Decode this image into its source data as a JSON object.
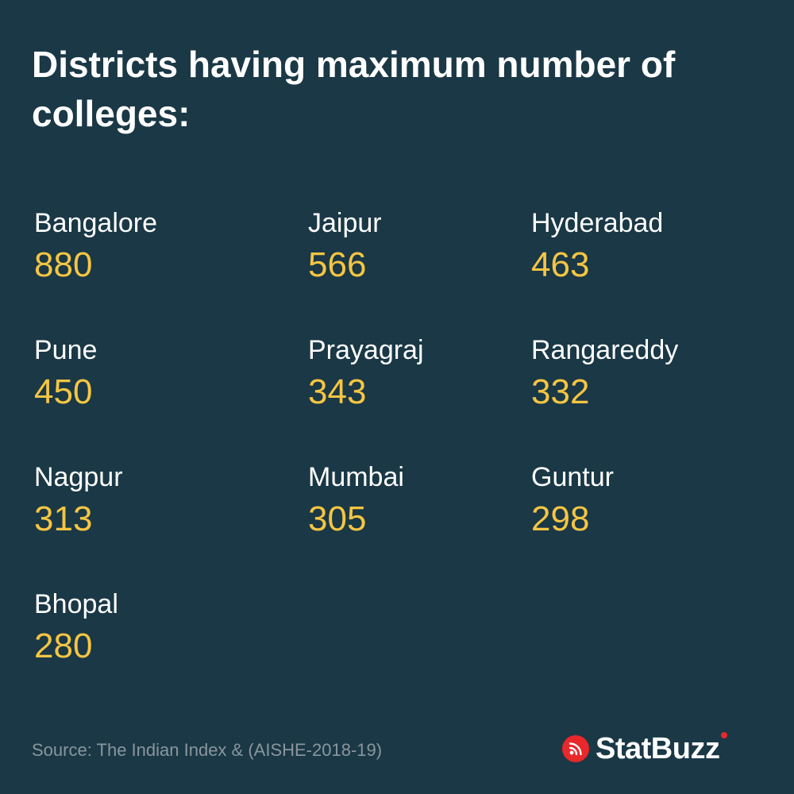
{
  "title": "Districts having maximum number of colleges:",
  "districts": [
    {
      "name": "Bangalore",
      "value": "880"
    },
    {
      "name": "Jaipur",
      "value": "566"
    },
    {
      "name": "Hyderabad",
      "value": "463"
    },
    {
      "name": "Pune",
      "value": "450"
    },
    {
      "name": "Prayagraj",
      "value": "343"
    },
    {
      "name": "Rangareddy",
      "value": "332"
    },
    {
      "name": "Nagpur",
      "value": "313"
    },
    {
      "name": "Mumbai",
      "value": "305"
    },
    {
      "name": "Guntur",
      "value": "298"
    },
    {
      "name": "Bhopal",
      "value": "280"
    }
  ],
  "footer": {
    "source": "Source: The Indian Index & (AISHE-2018-19)",
    "brand": "StatBuzz",
    "brand_icon": "broadcast-icon"
  },
  "colors": {
    "background": "#1a3846",
    "title": "#ffffff",
    "name": "#ffffff",
    "value": "#f5c542",
    "source": "#8a969c",
    "brand_accent": "#e8282b"
  }
}
